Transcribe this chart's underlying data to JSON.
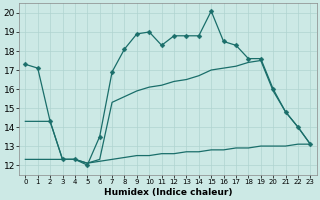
{
  "xlabel": "Humidex (Indice chaleur)",
  "bg_color": "#cce9e5",
  "grid_color": "#b0d4d0",
  "line_color": "#1a6e6a",
  "xlim": [
    -0.5,
    23.5
  ],
  "ylim": [
    11.5,
    20.5
  ],
  "xticks": [
    0,
    1,
    2,
    3,
    4,
    5,
    6,
    7,
    8,
    9,
    10,
    11,
    12,
    13,
    14,
    15,
    16,
    17,
    18,
    19,
    20,
    21,
    22,
    23
  ],
  "yticks": [
    12,
    13,
    14,
    15,
    16,
    17,
    18,
    19,
    20
  ],
  "line1": {
    "x": [
      0,
      1,
      2
    ],
    "y": [
      17.3,
      17.1,
      14.3
    ],
    "has_markers": true
  },
  "line2": {
    "x": [
      0,
      1,
      2,
      3,
      4,
      5,
      6,
      7,
      8,
      9,
      10,
      11,
      12,
      13,
      14,
      15,
      16,
      17,
      18,
      19,
      20,
      21,
      22,
      23
    ],
    "y": [
      17.3,
      17.1,
      14.3,
      12.3,
      12.3,
      12.0,
      13.5,
      16.9,
      18.1,
      18.9,
      19.0,
      18.3,
      18.8,
      18.8,
      18.8,
      20.1,
      18.5,
      18.3,
      17.6,
      17.6,
      16.0,
      14.8,
      14.0,
      13.1
    ],
    "has_markers": true
  },
  "line3": {
    "x": [
      0,
      1,
      2,
      3,
      4,
      5,
      6,
      7,
      8,
      9,
      10,
      11,
      12,
      13,
      14,
      15,
      16,
      17,
      18,
      19,
      20,
      21,
      22,
      23
    ],
    "y": [
      14.3,
      14.3,
      14.3,
      12.3,
      12.3,
      12.1,
      12.3,
      15.3,
      15.6,
      15.9,
      16.1,
      16.2,
      16.4,
      16.5,
      16.7,
      17.0,
      17.1,
      17.2,
      17.4,
      17.5,
      15.9,
      14.8,
      14.0,
      13.1
    ],
    "has_markers": false
  },
  "line4": {
    "x": [
      0,
      1,
      2,
      3,
      4,
      5,
      6,
      7,
      8,
      9,
      10,
      11,
      12,
      13,
      14,
      15,
      16,
      17,
      18,
      19,
      20,
      21,
      22,
      23
    ],
    "y": [
      12.3,
      12.3,
      12.3,
      12.3,
      12.3,
      12.1,
      12.2,
      12.3,
      12.4,
      12.5,
      12.5,
      12.6,
      12.6,
      12.7,
      12.7,
      12.8,
      12.8,
      12.9,
      12.9,
      13.0,
      13.0,
      13.0,
      13.1,
      13.1
    ],
    "has_markers": false
  }
}
